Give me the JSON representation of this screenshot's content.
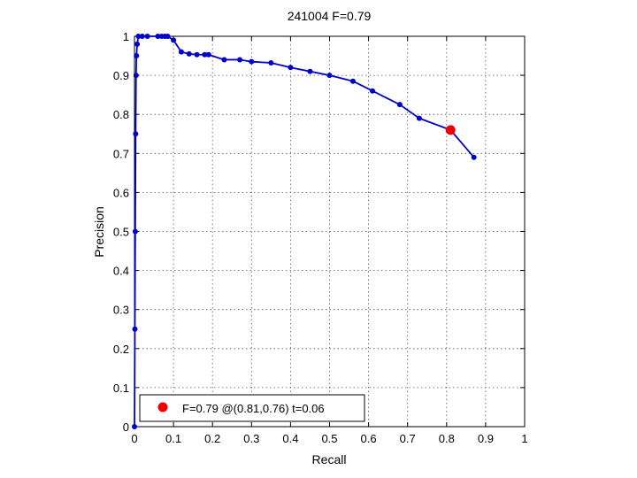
{
  "chart_data": {
    "type": "line",
    "title": "241004 F=0.79",
    "xlabel": "Recall",
    "ylabel": "Precision",
    "xlim": [
      0,
      1
    ],
    "ylim": [
      0,
      1
    ],
    "xticks": [
      0,
      0.1,
      0.2,
      0.3,
      0.4,
      0.5,
      0.6,
      0.7,
      0.8,
      0.9,
      1
    ],
    "yticks": [
      0,
      0.1,
      0.2,
      0.3,
      0.4,
      0.5,
      0.6,
      0.7,
      0.8,
      0.9,
      1
    ],
    "xtick_labels": [
      "0",
      "0.1",
      "0.2",
      "0.3",
      "0.4",
      "0.5",
      "0.6",
      "0.7",
      "0.8",
      "0.9",
      "1"
    ],
    "ytick_labels": [
      "0",
      "0.1",
      "0.2",
      "0.3",
      "0.4",
      "0.5",
      "0.6",
      "0.7",
      "0.8",
      "0.9",
      "1"
    ],
    "grid": true,
    "series_color": "#0000cc",
    "series": [
      {
        "x": [
          0.0,
          0.001,
          0.002,
          0.003,
          0.004,
          0.005,
          0.007,
          0.01,
          0.02,
          0.033,
          0.06,
          0.07,
          0.078,
          0.085,
          0.1,
          0.12,
          0.14,
          0.16,
          0.18,
          0.19,
          0.23,
          0.27,
          0.3,
          0.35,
          0.4,
          0.45,
          0.5,
          0.56,
          0.61,
          0.68,
          0.73,
          0.81,
          0.87
        ],
        "y": [
          0.0,
          0.25,
          0.5,
          0.75,
          0.9,
          0.95,
          0.98,
          1.0,
          1.0,
          1.0,
          1.0,
          1.0,
          1.0,
          1.0,
          0.99,
          0.96,
          0.955,
          0.953,
          0.953,
          0.953,
          0.94,
          0.94,
          0.935,
          0.932,
          0.92,
          0.91,
          0.9,
          0.885,
          0.86,
          0.825,
          0.79,
          0.76,
          0.69
        ]
      }
    ],
    "highlight_point": {
      "x": 0.81,
      "y": 0.76,
      "color": "#ee0000"
    },
    "legend": {
      "label": "F=0.79 @(0.81,0.76) t=0.06",
      "location": "bottom-left"
    }
  }
}
